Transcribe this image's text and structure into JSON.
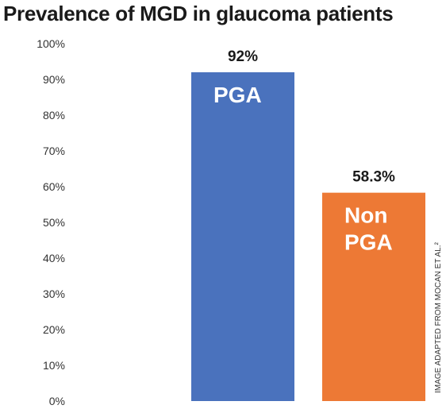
{
  "chart_data": {
    "type": "bar",
    "title": "Prevalence of MGD in glaucoma patients",
    "categories": [
      "PGA",
      "Non PGA"
    ],
    "category_label_lines": [
      [
        "PGA"
      ],
      [
        "Non",
        "PGA"
      ]
    ],
    "values": [
      92,
      58.3
    ],
    "value_labels": [
      "92%",
      "58.3%"
    ],
    "colors": [
      "#4a72bd",
      "#ed7935"
    ],
    "ylim": [
      0,
      100
    ],
    "yticks": [
      0,
      10,
      20,
      30,
      40,
      50,
      60,
      70,
      80,
      90,
      100
    ],
    "ytick_labels": [
      "0%",
      "10%",
      "20%",
      "30%",
      "40%",
      "50%",
      "60%",
      "70%",
      "80%",
      "90%",
      "100%"
    ],
    "grid": false,
    "credit": "IMAGE ADAPTED FROM MOCAN ET AL.²"
  }
}
